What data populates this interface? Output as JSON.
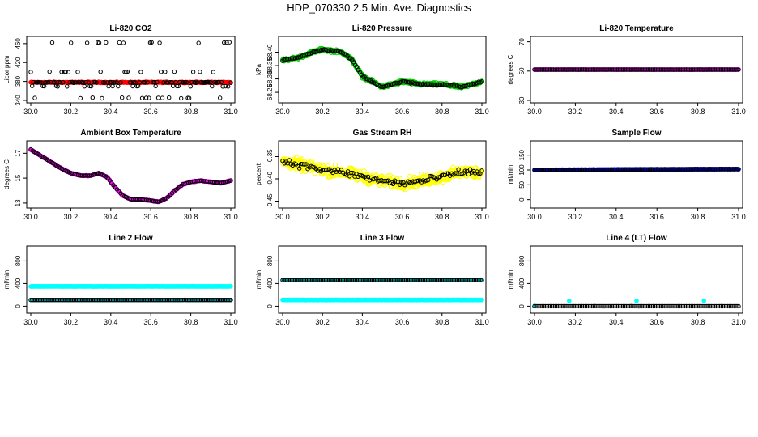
{
  "page_title": "HDP_070330  2.5 Min. Ave. Diagnostics",
  "colors": {
    "red": "#ff0000",
    "green": "#00cc00",
    "magenta": "#ff00ff",
    "yellow": "#ffff00",
    "blue": "#0000ff",
    "cyan": "#00ffff",
    "black": "#000000"
  },
  "chart_data": [
    {
      "type": "scatter",
      "title": "Li-820 CO2",
      "ylabel": "Licor ppm",
      "xlim": [
        30.0,
        31.0
      ],
      "ylim": [
        340,
        470
      ],
      "x_ticks": [
        "30.0",
        "30.2",
        "30.4",
        "30.6",
        "30.8",
        "31.0"
      ],
      "y_ticks": [
        "340",
        "380",
        "420",
        "460"
      ],
      "series": [
        {
          "name": "co2_fast",
          "color": "red",
          "pattern": "flat",
          "y": 378,
          "noise": 1.5,
          "n": 340,
          "r": 2.8,
          "fill": true
        },
        {
          "name": "co2_ave",
          "color": "black",
          "pattern": "sparse_levels",
          "levels": [
            378,
            370,
            345,
            462,
            400
          ],
          "n": 150,
          "r": 2.2,
          "fill": false
        }
      ]
    },
    {
      "type": "scatter",
      "title": "Li-820 Pressure",
      "ylabel": "kPa",
      "xlim": [
        30.0,
        31.0
      ],
      "ylim": [
        68.22,
        68.45
      ],
      "x_ticks": [
        "30.0",
        "30.2",
        "30.4",
        "30.6",
        "30.8",
        "31.0"
      ],
      "y_ticks": [
        "68.25",
        "68.30",
        "68.35",
        "68.40"
      ],
      "series": [
        {
          "name": "p_fast",
          "color": "green",
          "pattern": "curve",
          "pts": [
            [
              30.0,
              68.37
            ],
            [
              30.08,
              68.38
            ],
            [
              30.15,
              68.4
            ],
            [
              30.2,
              68.41
            ],
            [
              30.3,
              68.4
            ],
            [
              30.35,
              68.37
            ],
            [
              30.4,
              68.31
            ],
            [
              30.45,
              68.29
            ],
            [
              30.5,
              68.27
            ],
            [
              30.55,
              68.28
            ],
            [
              30.6,
              68.29
            ],
            [
              30.7,
              68.28
            ],
            [
              30.8,
              68.28
            ],
            [
              30.9,
              68.27
            ],
            [
              31.0,
              68.29
            ]
          ],
          "noise": 0.008,
          "n": 420,
          "r": 2.6,
          "fill": false
        },
        {
          "name": "p_ave",
          "color": "black",
          "pattern": "curve",
          "pts": [
            [
              30.0,
              68.37
            ],
            [
              30.08,
              68.38
            ],
            [
              30.15,
              68.4
            ],
            [
              30.2,
              68.41
            ],
            [
              30.3,
              68.4
            ],
            [
              30.35,
              68.37
            ],
            [
              30.4,
              68.31
            ],
            [
              30.45,
              68.29
            ],
            [
              30.5,
              68.27
            ],
            [
              30.55,
              68.28
            ],
            [
              30.6,
              68.29
            ],
            [
              30.7,
              68.28
            ],
            [
              30.8,
              68.28
            ],
            [
              30.9,
              68.27
            ],
            [
              31.0,
              68.29
            ]
          ],
          "noise": 0.004,
          "n": 130,
          "r": 2.2,
          "fill": false
        }
      ]
    },
    {
      "type": "scatter",
      "title": "Li-820 Temperature",
      "ylabel": "degrees C",
      "xlim": [
        30.0,
        31.0
      ],
      "ylim": [
        30,
        72
      ],
      "x_ticks": [
        "30.0",
        "30.2",
        "30.4",
        "30.6",
        "30.8",
        "31.0"
      ],
      "y_ticks": [
        "30",
        "50",
        "70"
      ],
      "series": [
        {
          "name": "t_fast",
          "color": "magenta",
          "pattern": "flat",
          "y": 51,
          "noise": 0.1,
          "n": 260,
          "r": 2.8,
          "fill": true
        },
        {
          "name": "t_ave",
          "color": "black",
          "pattern": "flat",
          "y": 51,
          "noise": 0.05,
          "n": 130,
          "r": 2.2,
          "fill": false
        }
      ]
    },
    {
      "type": "scatter",
      "title": "Ambient Box Temperature",
      "ylabel": "degrees C",
      "xlim": [
        30.0,
        31.0
      ],
      "ylim": [
        12.8,
        17.8
      ],
      "x_ticks": [
        "30.0",
        "30.2",
        "30.4",
        "30.6",
        "30.8",
        "31.0"
      ],
      "y_ticks": [
        "13",
        "15",
        "17"
      ],
      "series": [
        {
          "name": "box_fast",
          "color": "magenta",
          "pattern": "curve",
          "pts": [
            [
              30.0,
              17.3
            ],
            [
              30.05,
              16.8
            ],
            [
              30.1,
              16.3
            ],
            [
              30.15,
              15.8
            ],
            [
              30.2,
              15.4
            ],
            [
              30.25,
              15.2
            ],
            [
              30.3,
              15.2
            ],
            [
              30.34,
              15.4
            ],
            [
              30.38,
              15.1
            ],
            [
              30.42,
              14.3
            ],
            [
              30.46,
              13.6
            ],
            [
              30.5,
              13.3
            ],
            [
              30.55,
              13.3
            ],
            [
              30.6,
              13.2
            ],
            [
              30.64,
              13.1
            ],
            [
              30.68,
              13.4
            ],
            [
              30.72,
              14.0
            ],
            [
              30.76,
              14.5
            ],
            [
              30.8,
              14.7
            ],
            [
              30.85,
              14.8
            ],
            [
              30.9,
              14.7
            ],
            [
              30.95,
              14.6
            ],
            [
              31.0,
              14.8
            ]
          ],
          "noise": 0.05,
          "n": 280,
          "r": 2.8,
          "fill": true
        },
        {
          "name": "box_ave",
          "color": "black",
          "pattern": "curve",
          "pts": [
            [
              30.0,
              17.3
            ],
            [
              30.05,
              16.8
            ],
            [
              30.1,
              16.3
            ],
            [
              30.15,
              15.8
            ],
            [
              30.2,
              15.4
            ],
            [
              30.25,
              15.2
            ],
            [
              30.3,
              15.2
            ],
            [
              30.34,
              15.4
            ],
            [
              30.38,
              15.1
            ],
            [
              30.42,
              14.3
            ],
            [
              30.46,
              13.6
            ],
            [
              30.5,
              13.3
            ],
            [
              30.55,
              13.3
            ],
            [
              30.6,
              13.2
            ],
            [
              30.64,
              13.1
            ],
            [
              30.68,
              13.4
            ],
            [
              30.72,
              14.0
            ],
            [
              30.76,
              14.5
            ],
            [
              30.8,
              14.7
            ],
            [
              30.85,
              14.8
            ],
            [
              30.9,
              14.7
            ],
            [
              30.95,
              14.6
            ],
            [
              31.0,
              14.8
            ]
          ],
          "noise": 0.02,
          "n": 110,
          "r": 2.2,
          "fill": false
        }
      ]
    },
    {
      "type": "scatter",
      "title": "Gas Stream RH",
      "ylabel": "percent",
      "xlim": [
        30.0,
        31.0
      ],
      "ylim": [
        -0.46,
        -0.32
      ],
      "x_ticks": [
        "30.0",
        "30.2",
        "30.4",
        "30.6",
        "30.8",
        "31.0"
      ],
      "y_ticks": [
        "-0.45",
        "-0.40",
        "-0.35"
      ],
      "series": [
        {
          "name": "rh_fast",
          "color": "yellow",
          "pattern": "curve",
          "pts": [
            [
              30.0,
              -0.36
            ],
            [
              30.1,
              -0.37
            ],
            [
              30.2,
              -0.38
            ],
            [
              30.3,
              -0.385
            ],
            [
              30.4,
              -0.395
            ],
            [
              30.5,
              -0.405
            ],
            [
              30.6,
              -0.41
            ],
            [
              30.7,
              -0.405
            ],
            [
              30.8,
              -0.395
            ],
            [
              30.9,
              -0.385
            ],
            [
              31.0,
              -0.385
            ]
          ],
          "noise": 0.018,
          "n": 520,
          "r": 2.8,
          "fill": false
        },
        {
          "name": "rh_ave",
          "color": "black",
          "pattern": "curve",
          "pts": [
            [
              30.0,
              -0.36
            ],
            [
              30.1,
              -0.37
            ],
            [
              30.2,
              -0.38
            ],
            [
              30.3,
              -0.385
            ],
            [
              30.4,
              -0.395
            ],
            [
              30.5,
              -0.405
            ],
            [
              30.6,
              -0.41
            ],
            [
              30.7,
              -0.405
            ],
            [
              30.8,
              -0.395
            ],
            [
              30.9,
              -0.385
            ],
            [
              31.0,
              -0.385
            ]
          ],
          "noise": 0.01,
          "n": 120,
          "r": 2.2,
          "fill": false
        }
      ]
    },
    {
      "type": "scatter",
      "title": "Sample Flow",
      "ylabel": "ml/min",
      "xlim": [
        30.0,
        31.0
      ],
      "ylim": [
        -20,
        190
      ],
      "x_ticks": [
        "30.0",
        "30.2",
        "30.4",
        "30.6",
        "30.8",
        "31.0"
      ],
      "y_ticks": [
        "0",
        "50",
        "100",
        "150"
      ],
      "series": [
        {
          "name": "sf_fast",
          "color": "blue",
          "pattern": "curve",
          "pts": [
            [
              30.0,
              100
            ],
            [
              30.5,
              102
            ],
            [
              31.0,
              103
            ]
          ],
          "noise": 0.8,
          "n": 300,
          "r": 2.8,
          "fill": true
        },
        {
          "name": "sf_ave",
          "color": "black",
          "pattern": "curve",
          "pts": [
            [
              30.0,
              100
            ],
            [
              30.5,
              102
            ],
            [
              31.0,
              103
            ]
          ],
          "noise": 0.4,
          "n": 130,
          "r": 2.2,
          "fill": false
        }
      ]
    },
    {
      "type": "scatter",
      "title": "Line 2 Flow",
      "ylabel": "ml/min",
      "xlim": [
        30.0,
        31.0
      ],
      "ylim": [
        -80,
        1020
      ],
      "x_ticks": [
        "30.0",
        "30.2",
        "30.4",
        "30.6",
        "30.8",
        "31.0"
      ],
      "y_ticks": [
        "0",
        "400",
        "800"
      ],
      "series": [
        {
          "name": "l2_high",
          "color": "cyan",
          "pattern": "flat",
          "y": 350,
          "noise": 3,
          "n": 300,
          "r": 2.8,
          "fill": true
        },
        {
          "name": "l2_low",
          "color": "cyan",
          "pattern": "flat",
          "y": 110,
          "noise": 2,
          "n": 120,
          "r": 2.6,
          "fill": true
        },
        {
          "name": "l2_ave",
          "color": "black",
          "pattern": "flat",
          "y": 110,
          "noise": 1,
          "n": 130,
          "r": 2.2,
          "fill": false
        }
      ]
    },
    {
      "type": "scatter",
      "title": "Line 3 Flow",
      "ylabel": "ml/min",
      "xlim": [
        30.0,
        31.0
      ],
      "ylim": [
        -80,
        1020
      ],
      "x_ticks": [
        "30.0",
        "30.2",
        "30.4",
        "30.6",
        "30.8",
        "31.0"
      ],
      "y_ticks": [
        "0",
        "400",
        "800"
      ],
      "series": [
        {
          "name": "l3_low",
          "color": "cyan",
          "pattern": "flat",
          "y": 110,
          "noise": 3,
          "n": 300,
          "r": 2.8,
          "fill": true
        },
        {
          "name": "l3_high",
          "color": "cyan",
          "pattern": "flat",
          "y": 460,
          "noise": 2,
          "n": 120,
          "r": 2.6,
          "fill": true
        },
        {
          "name": "l3_ave",
          "color": "black",
          "pattern": "flat",
          "y": 460,
          "noise": 1,
          "n": 130,
          "r": 2.2,
          "fill": false
        }
      ]
    },
    {
      "type": "scatter",
      "title": "Line 4 (LT) Flow",
      "ylabel": "ml/min",
      "xlim": [
        30.0,
        31.0
      ],
      "ylim": [
        -80,
        1020
      ],
      "x_ticks": [
        "30.0",
        "30.2",
        "30.4",
        "30.6",
        "30.8",
        "31.0"
      ],
      "y_ticks": [
        "0",
        "400",
        "800"
      ],
      "series": [
        {
          "name": "l4_spikes",
          "color": "cyan",
          "pattern": "points",
          "points": [
            [
              30.17,
              95
            ],
            [
              30.5,
              95
            ],
            [
              30.83,
              95
            ],
            [
              30.0,
              5
            ]
          ],
          "r": 2.8,
          "fill": true
        },
        {
          "name": "l4_ave",
          "color": "black",
          "pattern": "flat",
          "y": 0,
          "noise": 1,
          "n": 130,
          "r": 2.2,
          "fill": false
        }
      ]
    }
  ]
}
